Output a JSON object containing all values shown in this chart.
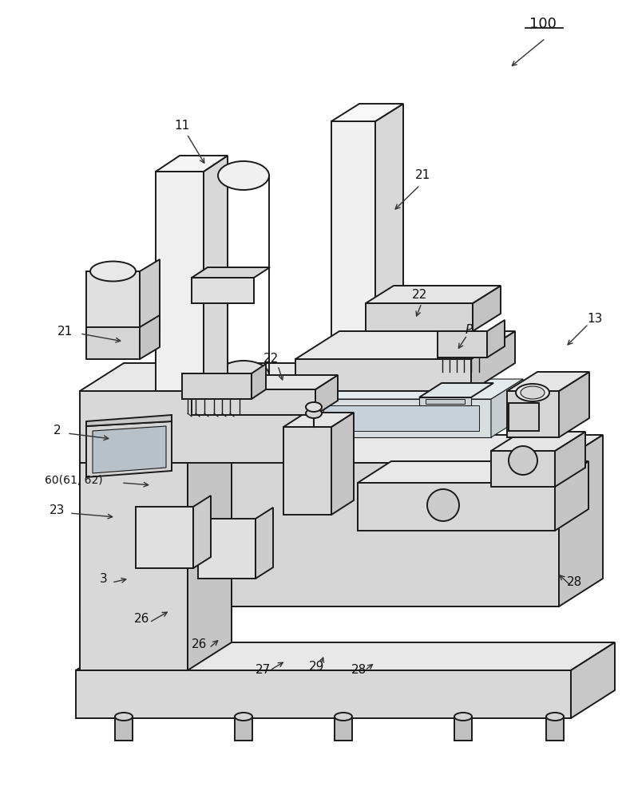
{
  "bg_color": "#ffffff",
  "lc": "#1a1a1a",
  "lw": 1.4,
  "tlw": 0.8,
  "fc_light": "#f0f0f0",
  "fc_mid": "#e0e0e0",
  "fc_dark": "#cccccc",
  "fc_darker": "#b8b8b8",
  "fc_white": "#f8f8f8"
}
